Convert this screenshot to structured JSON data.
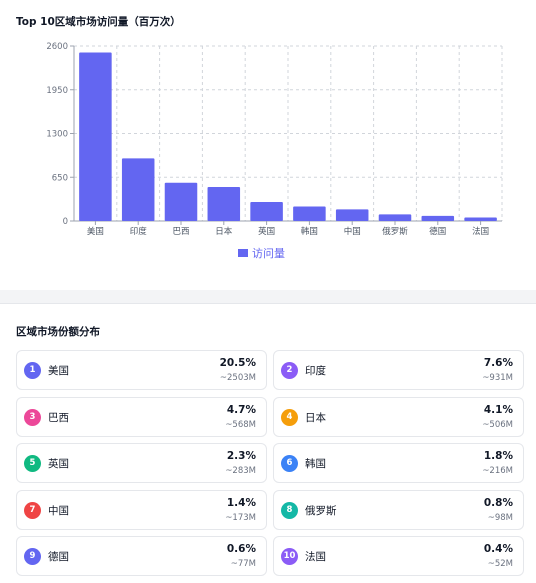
{
  "chart_card": {
    "title": "Top 10区域市场访问量（百万次）"
  },
  "chart_data": {
    "type": "bar",
    "title": "Top 10区域市场访问量（百万次）",
    "categories": [
      "美国",
      "印度",
      "巴西",
      "日本",
      "英国",
      "韩国",
      "中国",
      "俄罗斯",
      "德国",
      "法国"
    ],
    "series": [
      {
        "name": "访问量",
        "values": [
          2503,
          931,
          568,
          506,
          283,
          216,
          173,
          98,
          77,
          52
        ]
      }
    ],
    "yticks": [
      "0",
      "650",
      "1300",
      "1950",
      "2600"
    ],
    "ylim": [
      0,
      2600
    ],
    "grid": true,
    "legend": "bottom",
    "bar_color": "#6366f1"
  },
  "share_card": {
    "title": "区域市场份额分布",
    "items": [
      {
        "rank": "1",
        "name": "美国",
        "pct": "20.5%",
        "val": "~2503M",
        "color": "#6366f1"
      },
      {
        "rank": "2",
        "name": "印度",
        "pct": "7.6%",
        "val": "~931M",
        "color": "#8b5cf6"
      },
      {
        "rank": "3",
        "name": "巴西",
        "pct": "4.7%",
        "val": "~568M",
        "color": "#ec4899"
      },
      {
        "rank": "4",
        "name": "日本",
        "pct": "4.1%",
        "val": "~506M",
        "color": "#f59e0b"
      },
      {
        "rank": "5",
        "name": "英国",
        "pct": "2.3%",
        "val": "~283M",
        "color": "#10b981"
      },
      {
        "rank": "6",
        "name": "韩国",
        "pct": "1.8%",
        "val": "~216M",
        "color": "#3b82f6"
      },
      {
        "rank": "7",
        "name": "中国",
        "pct": "1.4%",
        "val": "~173M",
        "color": "#ef4444"
      },
      {
        "rank": "8",
        "name": "俄罗斯",
        "pct": "0.8%",
        "val": "~98M",
        "color": "#14b8a6"
      },
      {
        "rank": "9",
        "name": "德国",
        "pct": "0.6%",
        "val": "~77M",
        "color": "#6366f1"
      },
      {
        "rank": "10",
        "name": "法国",
        "pct": "0.4%",
        "val": "~52M",
        "color": "#8b5cf6"
      }
    ]
  }
}
